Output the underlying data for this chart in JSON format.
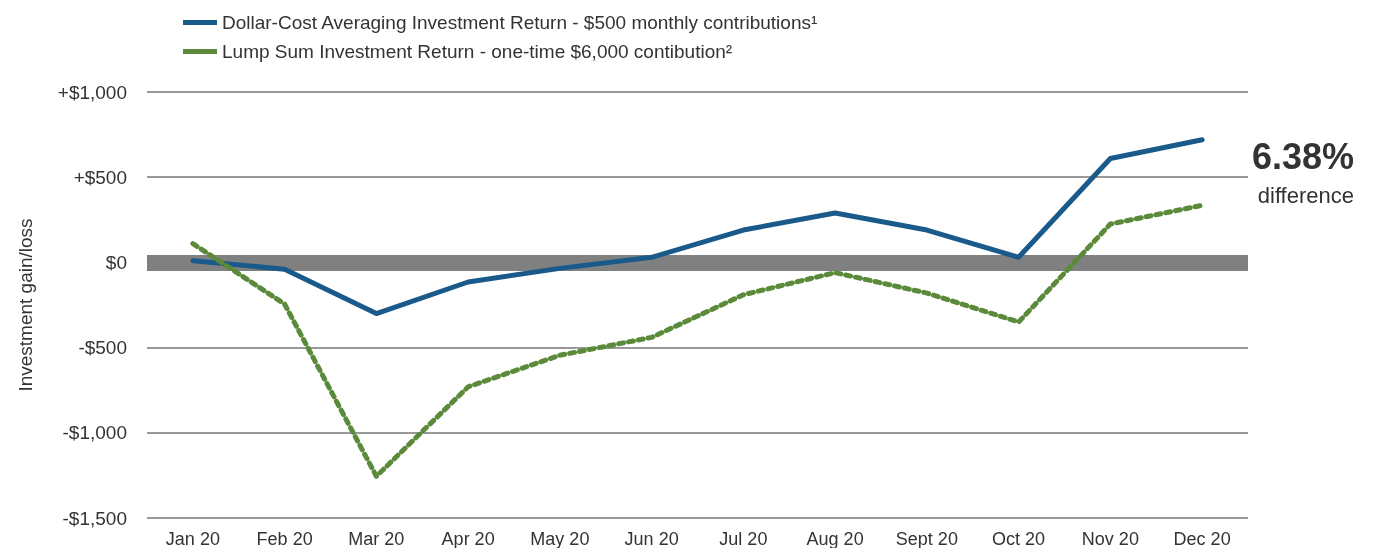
{
  "chart_data": {
    "type": "line",
    "ylabel": "Investment gain/loss",
    "categories": [
      "Jan 20",
      "Feb 20",
      "Mar 20",
      "Apr 20",
      "May 20",
      "Jun 20",
      "Jul 20",
      "Aug 20",
      "Sept 20",
      "Oct 20",
      "Nov 20",
      "Dec 20"
    ],
    "series": [
      {
        "name": "Dollar-Cost Averaging Investment Return - $500 monthly contributions¹",
        "color": "#1a5a8a",
        "line_style": "solid",
        "values": [
          10,
          -40,
          -300,
          -115,
          -35,
          30,
          190,
          290,
          190,
          30,
          610,
          720
        ]
      },
      {
        "name": "Lump Sum Investment Return - one-time $6,000 contibution²",
        "color": "#5a8a3a",
        "line_style": "dotted",
        "values": [
          110,
          -245,
          -1255,
          -730,
          -545,
          -440,
          -190,
          -60,
          -180,
          -350,
          225,
          335
        ]
      }
    ],
    "ylim": [
      -1500,
      1000
    ],
    "yticks": [
      {
        "value": -1500,
        "label": "-$1,500"
      },
      {
        "value": -1000,
        "label": "-$1,000"
      },
      {
        "value": -500,
        "label": "-$500"
      },
      {
        "value": 0,
        "label": "$0"
      },
      {
        "value": 500,
        "label": "+$500"
      },
      {
        "value": 1000,
        "label": "+$1,000"
      }
    ],
    "ref_lines": [
      {
        "axis": "y",
        "value": 0,
        "color": "#808080"
      }
    ],
    "annotations": [
      "6.38%",
      "difference"
    ],
    "grid": "y",
    "legend": "top left",
    "marker": "none"
  }
}
